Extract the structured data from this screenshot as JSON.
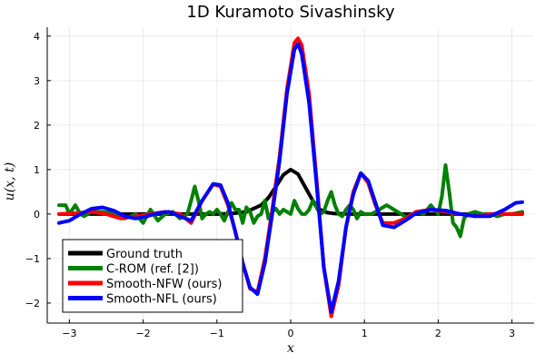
{
  "chart_data": {
    "type": "line",
    "title": "1D Kuramoto Sivashinsky",
    "xlabel": "x",
    "ylabel": "u(x, t)",
    "xlim": [
      -3.3,
      3.3
    ],
    "ylim": [
      -2.45,
      4.2
    ],
    "xticks": [
      -3,
      -2,
      -1,
      0,
      1,
      2,
      3
    ],
    "yticks": [
      -2,
      -1,
      0,
      1,
      2,
      3,
      4
    ],
    "grid": true,
    "legend_position": "bottom-left",
    "series": [
      {
        "name": "Ground truth",
        "color": "#000000",
        "x": [
          -3.14,
          -2.0,
          -1.0,
          -0.8,
          -0.6,
          -0.4,
          -0.3,
          -0.2,
          -0.1,
          0.0,
          0.1,
          0.2,
          0.3,
          0.4,
          0.5,
          0.6,
          0.8,
          1.0,
          2.0,
          3.14
        ],
        "y": [
          0,
          0,
          0,
          0.01,
          0.05,
          0.2,
          0.37,
          0.62,
          0.88,
          1.0,
          0.9,
          0.6,
          0.3,
          0.1,
          0.03,
          0.01,
          0,
          0,
          0,
          0
        ]
      },
      {
        "name": "C-ROM (ref. [2])",
        "color": "#008000",
        "x": [
          -3.14,
          -3.05,
          -3.0,
          -2.92,
          -2.85,
          -2.8,
          -2.7,
          -2.55,
          -2.4,
          -2.25,
          -2.1,
          -2.0,
          -1.9,
          -1.8,
          -1.7,
          -1.6,
          -1.5,
          -1.4,
          -1.35,
          -1.3,
          -1.25,
          -1.2,
          -1.15,
          -1.1,
          -1.05,
          -1.0,
          -0.95,
          -0.9,
          -0.85,
          -0.8,
          -0.75,
          -0.7,
          -0.65,
          -0.6,
          -0.55,
          -0.5,
          -0.45,
          -0.4,
          -0.35,
          -0.3,
          -0.25,
          -0.2,
          -0.15,
          -0.1,
          -0.05,
          0.0,
          0.05,
          0.1,
          0.15,
          0.2,
          0.25,
          0.3,
          0.35,
          0.4,
          0.45,
          0.5,
          0.55,
          0.6,
          0.65,
          0.7,
          0.75,
          0.8,
          0.85,
          0.9,
          0.95,
          1.0,
          1.1,
          1.2,
          1.3,
          1.4,
          1.5,
          1.6,
          1.7,
          1.8,
          1.9,
          2.0,
          2.05,
          2.1,
          2.15,
          2.2,
          2.25,
          2.3,
          2.35,
          2.4,
          2.5,
          2.6,
          2.7,
          2.8,
          2.9,
          3.0,
          3.14
        ],
        "y": [
          0.2,
          0.2,
          0.0,
          0.2,
          0.0,
          -0.05,
          0.05,
          0.05,
          0.02,
          -0.1,
          0.0,
          -0.2,
          0.1,
          -0.15,
          0.0,
          0.05,
          -0.1,
          0.0,
          0.3,
          0.62,
          0.3,
          -0.1,
          0.0,
          0.05,
          0.0,
          0.1,
          0.0,
          -0.15,
          0.05,
          0.25,
          0.1,
          0.1,
          -0.2,
          0.15,
          0.05,
          -0.2,
          -0.05,
          0.0,
          0.3,
          -0.1,
          0.05,
          0.12,
          0.0,
          0.1,
          0.05,
          0.0,
          0.3,
          0.12,
          0.0,
          0.0,
          0.1,
          0.3,
          0.15,
          0.0,
          0.05,
          0.3,
          0.5,
          0.2,
          0.0,
          -0.05,
          0.1,
          0.2,
          0.1,
          -0.1,
          0.05,
          0.0,
          0.0,
          0.1,
          0.2,
          0.1,
          0.0,
          -0.1,
          0.05,
          0.0,
          0.2,
          0.0,
          0.4,
          1.1,
          0.5,
          -0.2,
          -0.3,
          -0.5,
          -0.1,
          0.0,
          0.05,
          0.0,
          0.0,
          -0.05,
          0.0,
          0.0,
          0.05
        ]
      },
      {
        "name": "Smooth-NFW (ours)",
        "color": "#ff0000",
        "x": [
          -3.14,
          -2.9,
          -2.7,
          -2.5,
          -2.3,
          -2.1,
          -1.9,
          -1.7,
          -1.5,
          -1.35,
          -1.2,
          -1.05,
          -0.95,
          -0.85,
          -0.75,
          -0.65,
          -0.55,
          -0.45,
          -0.35,
          -0.25,
          -0.15,
          -0.05,
          0.05,
          0.1,
          0.15,
          0.25,
          0.35,
          0.45,
          0.55,
          0.65,
          0.75,
          0.85,
          0.95,
          1.05,
          1.15,
          1.25,
          1.4,
          1.55,
          1.7,
          1.9,
          2.1,
          2.3,
          2.5,
          2.7,
          2.9,
          3.14
        ],
        "y": [
          0,
          0.02,
          0.05,
          0.0,
          -0.1,
          -0.05,
          0.0,
          0.05,
          0.0,
          -0.2,
          0.3,
          0.67,
          0.62,
          0.2,
          -0.4,
          -1.1,
          -1.68,
          -1.75,
          -1.0,
          0.1,
          1.3,
          2.8,
          3.85,
          3.95,
          3.8,
          2.7,
          0.8,
          -1.2,
          -2.3,
          -1.6,
          -0.3,
          0.5,
          0.92,
          0.7,
          0.2,
          -0.2,
          -0.2,
          -0.1,
          0.05,
          0.1,
          0.05,
          0.0,
          -0.05,
          0.0,
          0.0,
          0.0
        ]
      },
      {
        "name": "Smooth-NFL (ours)",
        "color": "#0000ff",
        "x": [
          -3.14,
          -3.0,
          -2.85,
          -2.7,
          -2.55,
          -2.4,
          -2.25,
          -2.1,
          -1.95,
          -1.8,
          -1.65,
          -1.5,
          -1.35,
          -1.2,
          -1.05,
          -0.95,
          -0.85,
          -0.75,
          -0.65,
          -0.55,
          -0.45,
          -0.35,
          -0.25,
          -0.15,
          -0.05,
          0.05,
          0.1,
          0.15,
          0.25,
          0.35,
          0.45,
          0.55,
          0.65,
          0.75,
          0.85,
          0.95,
          1.05,
          1.15,
          1.25,
          1.4,
          1.55,
          1.7,
          1.9,
          2.1,
          2.3,
          2.5,
          2.7,
          2.9,
          3.05,
          3.14
        ],
        "y": [
          -0.2,
          -0.15,
          0.0,
          0.12,
          0.15,
          0.08,
          -0.05,
          -0.1,
          -0.05,
          0.02,
          0.05,
          -0.05,
          -0.15,
          0.3,
          0.68,
          0.65,
          0.25,
          -0.4,
          -1.1,
          -1.65,
          -1.8,
          -1.1,
          0.0,
          1.2,
          2.7,
          3.7,
          3.82,
          3.6,
          2.5,
          0.7,
          -1.2,
          -2.2,
          -1.5,
          -0.3,
          0.45,
          0.92,
          0.75,
          0.25,
          -0.25,
          -0.3,
          -0.15,
          0.02,
          0.1,
          0.08,
          0.0,
          -0.05,
          -0.05,
          0.1,
          0.25,
          0.27
        ]
      }
    ]
  }
}
